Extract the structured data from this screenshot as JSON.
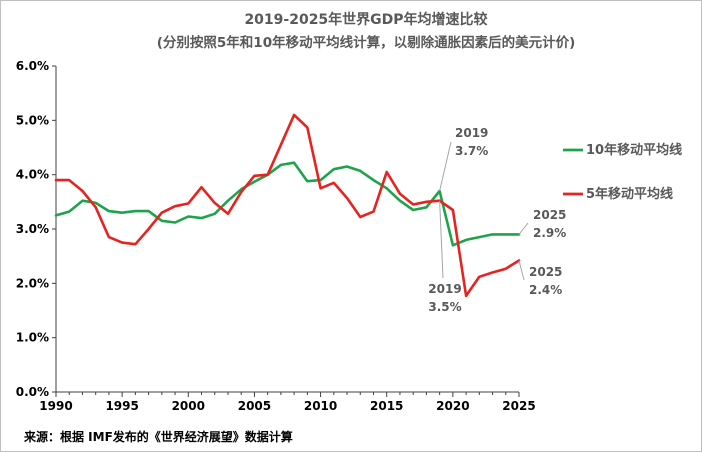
{
  "chart_data": {
    "type": "line",
    "title": "2019-2025年世界GDP年均增速比较",
    "subtitle": "(分别按照5年和10年移动平均线计算，以剔除通胀因素后的美元计价)",
    "source": "来源：根据 IMF发布的《世界经济展望》数据计算",
    "xlabel": "",
    "ylabel": "",
    "xlim": [
      1990,
      2025
    ],
    "ylim": [
      0,
      6
    ],
    "x_ticks": [
      "1990",
      "1995",
      "2000",
      "2005",
      "2010",
      "2015",
      "2020",
      "2025"
    ],
    "y_ticks": [
      "0.0%",
      "1.0%",
      "2.0%",
      "3.0%",
      "4.0%",
      "5.0%",
      "6.0%"
    ],
    "grid": false,
    "legend_position": "right",
    "x": [
      1990,
      1991,
      1992,
      1993,
      1994,
      1995,
      1996,
      1997,
      1998,
      1999,
      2000,
      2001,
      2002,
      2003,
      2004,
      2005,
      2006,
      2007,
      2008,
      2009,
      2010,
      2011,
      2012,
      2013,
      2014,
      2015,
      2016,
      2017,
      2018,
      2019,
      2020,
      2021,
      2022,
      2023,
      2024,
      2025
    ],
    "series": [
      {
        "name": "10年移动平均线",
        "color": "#1fa34a",
        "values": [
          3.25,
          3.32,
          3.52,
          3.48,
          3.33,
          3.3,
          3.33,
          3.33,
          3.15,
          3.12,
          3.23,
          3.2,
          3.28,
          3.52,
          3.73,
          3.87,
          4.0,
          4.18,
          4.22,
          3.88,
          3.9,
          4.1,
          4.15,
          4.07,
          3.9,
          3.75,
          3.52,
          3.35,
          3.4,
          3.7,
          2.7,
          2.8,
          2.85,
          2.9,
          2.9,
          2.9
        ]
      },
      {
        "name": "5年移动平均线",
        "color": "#e52421",
        "values": [
          3.9,
          3.9,
          3.7,
          3.4,
          2.85,
          2.75,
          2.72,
          3.0,
          3.3,
          3.42,
          3.47,
          3.77,
          3.48,
          3.28,
          3.68,
          3.98,
          4.0,
          4.55,
          5.1,
          4.87,
          3.75,
          3.85,
          3.57,
          3.22,
          3.32,
          4.05,
          3.65,
          3.45,
          3.5,
          3.52,
          3.35,
          1.77,
          2.12,
          2.2,
          2.27,
          2.42
        ]
      }
    ],
    "annotations": [
      {
        "year": "2019",
        "value": "3.7%",
        "series": "10年移动平均线"
      },
      {
        "year": "2019",
        "value": "3.5%",
        "series": "5年移动平均线"
      },
      {
        "year": "2025",
        "value": "2.9%",
        "series": "10年移动平均线"
      },
      {
        "year": "2025",
        "value": "2.4%",
        "series": "5年移动平均线"
      }
    ]
  }
}
